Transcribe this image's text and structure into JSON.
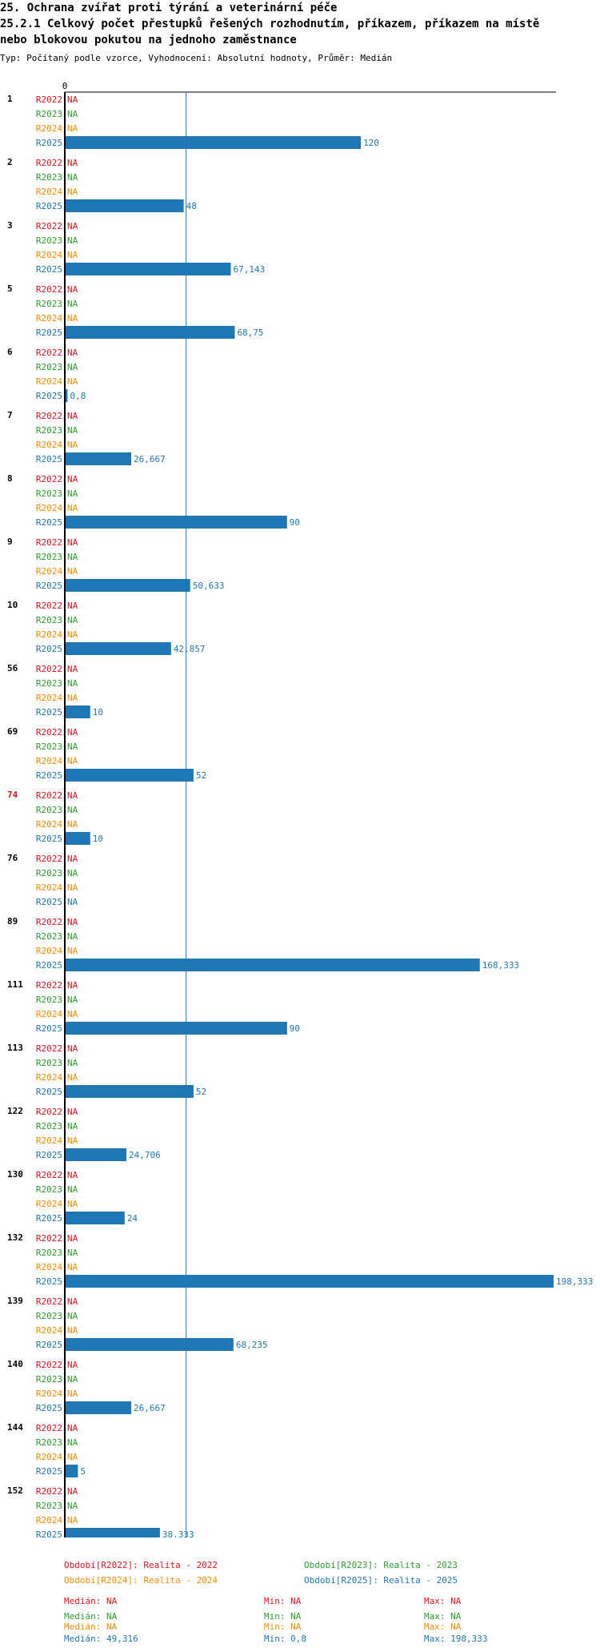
{
  "header": {
    "line1": "25. Ochrana zvířat proti týrání a veterinární péče",
    "line2": "25.2.1 Celkový počet přestupků řešených rozhodnutím, příkazem, příkazem na místě",
    "line3": "nebo blokovou pokutou na jednoho zaměstnance",
    "subtitle": "Typ: Počítaný podle vzorce, Vyhodnocení: Absolutní hodnoty, Průměr: Medián"
  },
  "colors": {
    "R2022": "#e8141e",
    "R2023": "#2ca02c",
    "R2024": "#ff8c00",
    "R2025": "#1f77b4",
    "group_highlight": "#e8141e",
    "axis": "#000000"
  },
  "chart_data": {
    "type": "bar",
    "orientation": "horizontal",
    "axis_zero_label": "0",
    "median_line": 49.316,
    "xlim": [
      0,
      198.333
    ],
    "series_labels": [
      "R2022",
      "R2023",
      "R2024",
      "R2025"
    ],
    "na_text": "NA",
    "groups": [
      {
        "id": "1",
        "values": [
          null,
          null,
          null,
          120
        ],
        "labels": [
          "NA",
          "NA",
          "NA",
          "120"
        ]
      },
      {
        "id": "2",
        "values": [
          null,
          null,
          null,
          48
        ],
        "labels": [
          "NA",
          "NA",
          "NA",
          "48"
        ]
      },
      {
        "id": "3",
        "values": [
          null,
          null,
          null,
          67.143
        ],
        "labels": [
          "NA",
          "NA",
          "NA",
          "67,143"
        ]
      },
      {
        "id": "5",
        "values": [
          null,
          null,
          null,
          68.75
        ],
        "labels": [
          "NA",
          "NA",
          "NA",
          "68,75"
        ]
      },
      {
        "id": "6",
        "values": [
          null,
          null,
          null,
          0.8
        ],
        "labels": [
          "NA",
          "NA",
          "NA",
          "0,8"
        ]
      },
      {
        "id": "7",
        "values": [
          null,
          null,
          null,
          26.667
        ],
        "labels": [
          "NA",
          "NA",
          "NA",
          "26,667"
        ]
      },
      {
        "id": "8",
        "values": [
          null,
          null,
          null,
          90
        ],
        "labels": [
          "NA",
          "NA",
          "NA",
          "90"
        ]
      },
      {
        "id": "9",
        "values": [
          null,
          null,
          null,
          50.633
        ],
        "labels": [
          "NA",
          "NA",
          "NA",
          "50,633"
        ]
      },
      {
        "id": "10",
        "values": [
          null,
          null,
          null,
          42.857
        ],
        "labels": [
          "NA",
          "NA",
          "NA",
          "42,857"
        ]
      },
      {
        "id": "56",
        "values": [
          null,
          null,
          null,
          10
        ],
        "labels": [
          "NA",
          "NA",
          "NA",
          "10"
        ]
      },
      {
        "id": "69",
        "values": [
          null,
          null,
          null,
          52
        ],
        "labels": [
          "NA",
          "NA",
          "NA",
          "52"
        ]
      },
      {
        "id": "74",
        "values": [
          null,
          null,
          null,
          10
        ],
        "labels": [
          "NA",
          "NA",
          "NA",
          "10"
        ],
        "highlight": true
      },
      {
        "id": "76",
        "values": [
          null,
          null,
          null,
          null
        ],
        "labels": [
          "NA",
          "NA",
          "NA",
          "NA"
        ]
      },
      {
        "id": "89",
        "values": [
          null,
          null,
          null,
          168.333
        ],
        "labels": [
          "NA",
          "NA",
          "NA",
          "168,333"
        ]
      },
      {
        "id": "111",
        "values": [
          null,
          null,
          null,
          90
        ],
        "labels": [
          "NA",
          "NA",
          "NA",
          "90"
        ]
      },
      {
        "id": "113",
        "values": [
          null,
          null,
          null,
          52
        ],
        "labels": [
          "NA",
          "NA",
          "NA",
          "52"
        ]
      },
      {
        "id": "122",
        "values": [
          null,
          null,
          null,
          24.706
        ],
        "labels": [
          "NA",
          "NA",
          "NA",
          "24,706"
        ]
      },
      {
        "id": "130",
        "values": [
          null,
          null,
          null,
          24
        ],
        "labels": [
          "NA",
          "NA",
          "NA",
          "24"
        ]
      },
      {
        "id": "132",
        "values": [
          null,
          null,
          null,
          198.333
        ],
        "labels": [
          "NA",
          "NA",
          "NA",
          "198,333"
        ]
      },
      {
        "id": "139",
        "values": [
          null,
          null,
          null,
          68.235
        ],
        "labels": [
          "NA",
          "NA",
          "NA",
          "68,235"
        ]
      },
      {
        "id": "140",
        "values": [
          null,
          null,
          null,
          26.667
        ],
        "labels": [
          "NA",
          "NA",
          "NA",
          "26,667"
        ]
      },
      {
        "id": "144",
        "values": [
          null,
          null,
          null,
          5
        ],
        "labels": [
          "NA",
          "NA",
          "NA",
          "5"
        ]
      },
      {
        "id": "152",
        "values": [
          null,
          null,
          null,
          38.333
        ],
        "labels": [
          "NA",
          "NA",
          "NA",
          "38,333"
        ]
      }
    ]
  },
  "legend": {
    "r2022": "Období[R2022]: Realita - 2022",
    "r2023": "Období[R2023]: Realita - 2023",
    "r2024": "Období[R2024]: Realita - 2024",
    "r2025": "Období[R2025]: Realita - 2025"
  },
  "stats": [
    {
      "key": "R2022",
      "median": "Medián: NA",
      "min": "Min: NA",
      "max": "Max: NA"
    },
    {
      "key": "R2023",
      "median": "Medián: NA",
      "min": "Min: NA",
      "max": "Max: NA"
    },
    {
      "key": "R2024",
      "median": "Medián: NA",
      "min": "Min: NA",
      "max": "Max: NA"
    },
    {
      "key": "R2025",
      "median": "Medián: 49,316",
      "min": "Min: 0,8",
      "max": "Max: 198,333"
    }
  ]
}
